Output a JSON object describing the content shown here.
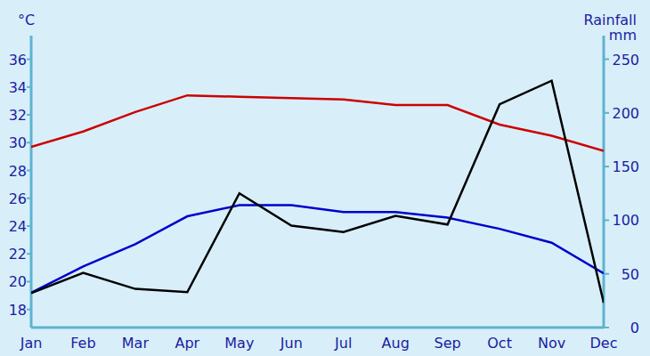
{
  "chart_data": {
    "type": "line",
    "y_label": "°C",
    "y2_label": "Rainfall mm",
    "categories": [
      "Jan",
      "Feb",
      "Mar",
      "Apr",
      "May",
      "Jun",
      "Jul",
      "Aug",
      "Sep",
      "Oct",
      "Nov",
      "Dec"
    ],
    "series": [
      {
        "color": "#cc0000",
        "values": [
          29.7,
          30.8,
          32.2,
          33.4,
          33.3,
          33.2,
          33.1,
          32.7,
          32.7,
          31.3,
          30.5,
          29.4
        ]
      },
      {
        "color": "#0000cc",
        "values": [
          19.2,
          21.1,
          22.7,
          24.7,
          25.5,
          25.5,
          25.0,
          25.0,
          24.6,
          23.8,
          22.8,
          20.6
        ]
      },
      {
        "color": "#000000",
        "axis": "y2",
        "values": [
          32,
          51,
          36,
          33,
          125,
          95,
          89,
          104,
          96,
          208,
          230,
          23
        ]
      }
    ],
    "ylim": [
      16.7,
      37.7
    ],
    "yticks": [
      18,
      20,
      22,
      24,
      26,
      28,
      30,
      32,
      34,
      36
    ],
    "y2lim": [
      0,
      272
    ],
    "y2ticks": [
      0,
      50,
      100,
      150,
      200,
      250
    ],
    "grid": false
  }
}
